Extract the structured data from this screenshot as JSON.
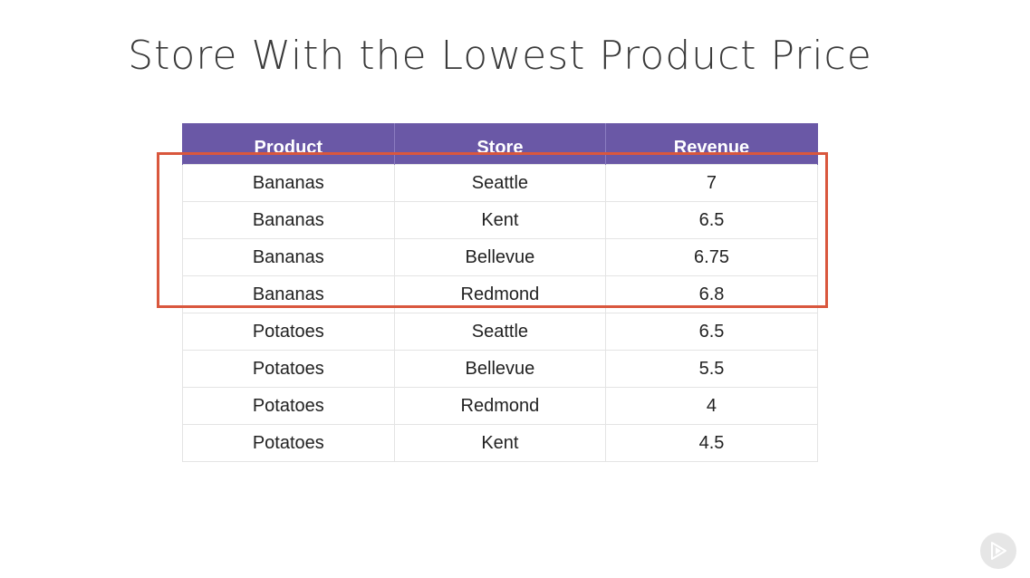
{
  "slide": {
    "title": "Store With the Lowest Product Price"
  },
  "table": {
    "headers": [
      "Product",
      "Store",
      "Revenue"
    ],
    "rows": [
      [
        "Bananas",
        "Seattle",
        "7"
      ],
      [
        "Bananas",
        "Kent",
        "6.5"
      ],
      [
        "Bananas",
        "Bellevue",
        "6.75"
      ],
      [
        "Bananas",
        "Redmond",
        "6.8"
      ],
      [
        "Potatoes",
        "Seattle",
        "6.5"
      ],
      [
        "Potatoes",
        "Bellevue",
        "5.5"
      ],
      [
        "Potatoes",
        "Redmond",
        "4"
      ],
      [
        "Potatoes",
        "Kent",
        "4.5"
      ]
    ],
    "highlighted_rows": [
      0,
      1,
      2,
      3
    ]
  },
  "colors": {
    "header_bg": "#6a58a6",
    "highlight_border": "#d9573d"
  },
  "icons": {
    "play_badge": "play-logo-icon"
  }
}
